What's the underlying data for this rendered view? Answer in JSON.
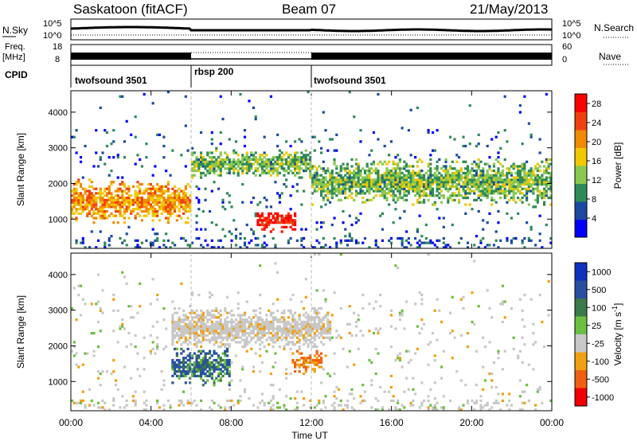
{
  "header": {
    "station": "Saskatoon (fitACF)",
    "beam": "Beam 07",
    "date": "21/May/2013"
  },
  "nsky_panel": {
    "left_label": "N.Sky",
    "right_label": "N.Search",
    "left_ticks": [
      "10^5",
      "10^0"
    ],
    "right_ticks": [
      "10^5",
      "10^0"
    ]
  },
  "freq_panel": {
    "left_label_line1": "Freq.",
    "left_label_line2": "[MHz]",
    "right_label": "Nave",
    "left_ticks": [
      "18",
      "8"
    ],
    "right_ticks": [
      "60",
      "0"
    ]
  },
  "cpid": {
    "label": "CPID",
    "segments": [
      {
        "name": "twofsound 3501",
        "start_hour": 0,
        "end_hour": 6
      },
      {
        "name": "rbsp 200",
        "start_hour": 6,
        "end_hour": 12
      },
      {
        "name": "twofsound 3501",
        "start_hour": 12,
        "end_hour": 24
      }
    ]
  },
  "colors": {
    "power_scale": [
      "#0000ff",
      "#1a4aa0",
      "#2e8a58",
      "#8ac850",
      "#f0c800",
      "#f08a00",
      "#f04010",
      "#ff0000"
    ],
    "velocity_scale": [
      "#1030c0",
      "#2850a0",
      "#3a7a48",
      "#6ac040",
      "#c8c8c8",
      "#f0a010",
      "#f06010",
      "#f00000"
    ]
  },
  "chart_data": [
    {
      "type": "heatmap",
      "title": "",
      "xlabel": "",
      "ylabel": "Slant Range [km]",
      "x_ticks": [
        "00:00",
        "04:00",
        "08:00",
        "12:00",
        "16:00",
        "20:00",
        "00:00"
      ],
      "xlim_hours": [
        0,
        24
      ],
      "y_ticks": [
        1000,
        2000,
        3000,
        4000
      ],
      "ylim": [
        180,
        4600
      ],
      "colorbar": {
        "label": "Power [dB]",
        "ticks": [
          4,
          8,
          12,
          16,
          20,
          24,
          28
        ],
        "range": [
          0,
          30
        ]
      },
      "features": [
        {
          "name": "nightside band",
          "start_hour": 0,
          "end_hour": 6,
          "range_km": [
            1000,
            2000
          ],
          "dominant_db": 20
        },
        {
          "name": "strong echo",
          "start_hour": 9.3,
          "end_hour": 11.2,
          "range_km": [
            700,
            1200
          ],
          "dominant_db": 28
        },
        {
          "name": "upper arc",
          "start_hour": 6,
          "end_hour": 12,
          "range_km": [
            2200,
            2900
          ],
          "dominant_db": 12
        },
        {
          "name": "afternoon band",
          "start_hour": 12,
          "end_hour": 24,
          "range_km": [
            1500,
            2600
          ],
          "dominant_db": 12
        }
      ]
    },
    {
      "type": "heatmap",
      "title": "",
      "xlabel": "Time UT",
      "ylabel": "Slant Range [km]",
      "x_ticks": [
        "00:00",
        "04:00",
        "08:00",
        "12:00",
        "16:00",
        "20:00",
        "00:00"
      ],
      "xlim_hours": [
        0,
        24
      ],
      "y_ticks": [
        1000,
        2000,
        3000,
        4000
      ],
      "ylim": [
        180,
        4600
      ],
      "colorbar": {
        "label": "Velocity [m s",
        "label_sup": "-1",
        "label_end": "]",
        "ticks": [
          "1000",
          "500",
          "100",
          "25",
          "-25",
          "-100",
          "-500",
          "-1000"
        ]
      },
      "features": [
        {
          "name": "ground scatter arc",
          "start_hour": 5,
          "end_hour": 13,
          "range_km": [
            2000,
            3000
          ],
          "velocity": 0
        },
        {
          "name": "positive flow",
          "start_hour": 5,
          "end_hour": 8,
          "range_km": [
            1000,
            1900
          ],
          "velocity": 500
        },
        {
          "name": "negative flow",
          "start_hour": 11,
          "end_hour": 12.5,
          "range_km": [
            1300,
            1800
          ],
          "velocity": -500
        }
      ]
    }
  ]
}
